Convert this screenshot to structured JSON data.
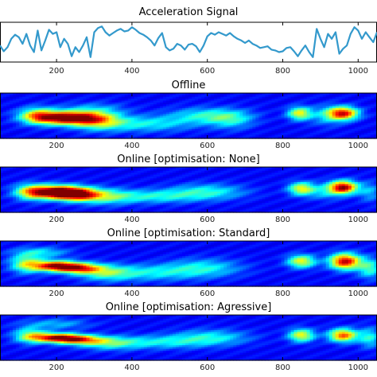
{
  "chart_data": [
    {
      "type": "line",
      "title": "Acceleration Signal",
      "xlim": [
        50,
        1050
      ],
      "ylim": [
        -1.2,
        1.2
      ],
      "x_ticks": [
        "200",
        "400",
        "600",
        "800",
        "1000"
      ],
      "color": "#3399cc",
      "series": [
        {
          "x": [
            50,
            60,
            70,
            80,
            90,
            100,
            110,
            120,
            130,
            140,
            150,
            160,
            170,
            180,
            190,
            200,
            210,
            220,
            230,
            240,
            250,
            260,
            270,
            280,
            290,
            300,
            310,
            320,
            330,
            340,
            350,
            360,
            370,
            380,
            390,
            400,
            410,
            420,
            430,
            440,
            450,
            460,
            470,
            480,
            490,
            500,
            510,
            520,
            530,
            540,
            550,
            560,
            570,
            580,
            590,
            600,
            610,
            620,
            630,
            640,
            650,
            660,
            670,
            680,
            690,
            700,
            710,
            720,
            730,
            740,
            750,
            760,
            770,
            780,
            790,
            800,
            810,
            820,
            830,
            840,
            850,
            860,
            870,
            880,
            890,
            900,
            910,
            920,
            930,
            940,
            950,
            960,
            970,
            980,
            990,
            1000,
            1010,
            1020,
            1030,
            1040,
            1050
          ],
          "y": [
            -0.2,
            -0.55,
            -0.3,
            0.2,
            0.45,
            0.3,
            -0.1,
            0.5,
            -0.2,
            -0.6,
            0.7,
            -0.5,
            0.1,
            0.75,
            0.5,
            0.6,
            -0.3,
            0.2,
            -0.1,
            -0.85,
            -0.3,
            -0.6,
            -0.2,
            0.3,
            -0.9,
            0.6,
            0.85,
            0.95,
            0.6,
            0.4,
            0.55,
            0.7,
            0.8,
            0.65,
            0.7,
            0.9,
            0.75,
            0.55,
            0.45,
            0.3,
            0.1,
            -0.2,
            0.25,
            0.55,
            -0.3,
            -0.5,
            -0.4,
            -0.1,
            -0.2,
            -0.45,
            -0.15,
            -0.1,
            -0.25,
            -0.6,
            -0.2,
            0.35,
            0.55,
            0.45,
            0.6,
            0.5,
            0.4,
            0.55,
            0.35,
            0.2,
            0.1,
            -0.05,
            0.1,
            -0.1,
            -0.2,
            -0.35,
            -0.3,
            -0.25,
            -0.45,
            -0.5,
            -0.6,
            -0.55,
            -0.35,
            -0.3,
            -0.55,
            -0.85,
            -0.5,
            -0.2,
            -0.6,
            -0.9,
            0.8,
            0.2,
            -0.3,
            0.5,
            0.2,
            0.6,
            -0.7,
            -0.4,
            -0.2,
            0.5,
            0.9,
            0.7,
            0.2,
            0.6,
            0.3,
            0.0,
            0.6
          ]
        }
      ]
    },
    {
      "type": "heatmap",
      "title": "Offline",
      "xlim": [
        50,
        1050
      ],
      "x_ticks": [
        "200",
        "400",
        "600",
        "800",
        "1000"
      ],
      "colormap": "jet",
      "blobs": [
        {
          "x": 230,
          "y": 0.55,
          "sx": 55,
          "sy": 0.1,
          "v": 1.0
        },
        {
          "x": 150,
          "y": 0.5,
          "sx": 35,
          "sy": 0.12,
          "v": 0.55
        },
        {
          "x": 310,
          "y": 0.6,
          "sx": 45,
          "sy": 0.14,
          "v": 0.45
        },
        {
          "x": 430,
          "y": 0.68,
          "sx": 90,
          "sy": 0.12,
          "v": 0.28
        },
        {
          "x": 600,
          "y": 0.5,
          "sx": 70,
          "sy": 0.12,
          "v": 0.3
        },
        {
          "x": 665,
          "y": 0.6,
          "sx": 40,
          "sy": 0.14,
          "v": 0.22
        },
        {
          "x": 845,
          "y": 0.45,
          "sx": 22,
          "sy": 0.1,
          "v": 0.55
        },
        {
          "x": 960,
          "y": 0.45,
          "sx": 28,
          "sy": 0.1,
          "v": 0.85
        },
        {
          "x": 915,
          "y": 0.5,
          "sx": 30,
          "sy": 0.15,
          "v": 0.2
        },
        {
          "x": 300,
          "y": 0.35,
          "sx": 60,
          "sy": 0.1,
          "v": 0.15
        }
      ]
    },
    {
      "type": "heatmap",
      "title": "Online [optimisation: None]",
      "xlim": [
        50,
        1050
      ],
      "x_ticks": [
        "200",
        "400",
        "600",
        "800",
        "1000"
      ],
      "colormap": "jet",
      "blobs": [
        {
          "x": 195,
          "y": 0.55,
          "sx": 45,
          "sy": 0.1,
          "v": 1.0
        },
        {
          "x": 255,
          "y": 0.6,
          "sx": 40,
          "sy": 0.1,
          "v": 0.8
        },
        {
          "x": 130,
          "y": 0.55,
          "sx": 30,
          "sy": 0.12,
          "v": 0.45
        },
        {
          "x": 330,
          "y": 0.65,
          "sx": 50,
          "sy": 0.12,
          "v": 0.35
        },
        {
          "x": 460,
          "y": 0.65,
          "sx": 80,
          "sy": 0.1,
          "v": 0.28
        },
        {
          "x": 600,
          "y": 0.55,
          "sx": 70,
          "sy": 0.12,
          "v": 0.3
        },
        {
          "x": 850,
          "y": 0.48,
          "sx": 24,
          "sy": 0.1,
          "v": 0.55
        },
        {
          "x": 960,
          "y": 0.45,
          "sx": 26,
          "sy": 0.1,
          "v": 0.95
        },
        {
          "x": 910,
          "y": 0.55,
          "sx": 30,
          "sy": 0.12,
          "v": 0.2
        },
        {
          "x": 1030,
          "y": 0.55,
          "sx": 20,
          "sy": 0.15,
          "v": 0.2
        }
      ]
    },
    {
      "type": "heatmap",
      "title": "Online [optimisation: Standard]",
      "xlim": [
        50,
        1050
      ],
      "x_ticks": [
        "200",
        "400",
        "600",
        "800",
        "1000"
      ],
      "colormap": "jet",
      "blobs": [
        {
          "x": 195,
          "y": 0.55,
          "sx": 40,
          "sy": 0.08,
          "v": 0.85
        },
        {
          "x": 260,
          "y": 0.6,
          "sx": 40,
          "sy": 0.08,
          "v": 0.7
        },
        {
          "x": 120,
          "y": 0.5,
          "sx": 30,
          "sy": 0.14,
          "v": 0.45
        },
        {
          "x": 330,
          "y": 0.7,
          "sx": 50,
          "sy": 0.12,
          "v": 0.35
        },
        {
          "x": 450,
          "y": 0.7,
          "sx": 80,
          "sy": 0.12,
          "v": 0.25
        },
        {
          "x": 590,
          "y": 0.6,
          "sx": 70,
          "sy": 0.14,
          "v": 0.28
        },
        {
          "x": 160,
          "y": 0.25,
          "sx": 50,
          "sy": 0.08,
          "v": 0.25
        },
        {
          "x": 850,
          "y": 0.45,
          "sx": 26,
          "sy": 0.1,
          "v": 0.55
        },
        {
          "x": 965,
          "y": 0.45,
          "sx": 28,
          "sy": 0.12,
          "v": 0.9
        },
        {
          "x": 1030,
          "y": 0.6,
          "sx": 22,
          "sy": 0.15,
          "v": 0.35
        }
      ]
    },
    {
      "type": "heatmap",
      "title": "Online [optimisation: Agressive]",
      "xlim": [
        50,
        1050
      ],
      "x_ticks": [
        "200",
        "400",
        "600",
        "800",
        "1000"
      ],
      "colormap": "jet",
      "blobs": [
        {
          "x": 200,
          "y": 0.5,
          "sx": 45,
          "sy": 0.07,
          "v": 0.8
        },
        {
          "x": 260,
          "y": 0.55,
          "sx": 45,
          "sy": 0.07,
          "v": 0.6
        },
        {
          "x": 130,
          "y": 0.45,
          "sx": 30,
          "sy": 0.12,
          "v": 0.4
        },
        {
          "x": 340,
          "y": 0.62,
          "sx": 55,
          "sy": 0.1,
          "v": 0.35
        },
        {
          "x": 480,
          "y": 0.6,
          "sx": 80,
          "sy": 0.1,
          "v": 0.25
        },
        {
          "x": 610,
          "y": 0.5,
          "sx": 70,
          "sy": 0.12,
          "v": 0.28
        },
        {
          "x": 850,
          "y": 0.45,
          "sx": 24,
          "sy": 0.1,
          "v": 0.55
        },
        {
          "x": 960,
          "y": 0.45,
          "sx": 26,
          "sy": 0.1,
          "v": 0.75
        },
        {
          "x": 1030,
          "y": 0.5,
          "sx": 20,
          "sy": 0.15,
          "v": 0.3
        },
        {
          "x": 200,
          "y": 0.2,
          "sx": 60,
          "sy": 0.08,
          "v": 0.2
        }
      ]
    }
  ]
}
